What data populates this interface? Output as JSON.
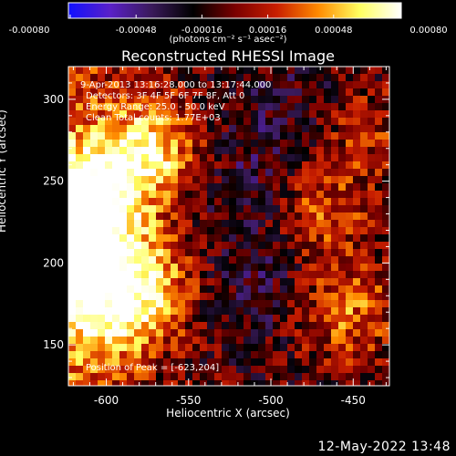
{
  "colorbar": {
    "tick_labels": [
      "-0.00080",
      "-0.00048",
      "-0.00016",
      "0.00016",
      "0.00048",
      "0.00080"
    ],
    "units": "(photons cm⁻² s⁻¹ asec⁻²)",
    "colors": [
      "#1010ff",
      "#5a20c8",
      "#3a1a5a",
      "#000000",
      "#7a0000",
      "#c81e00",
      "#ff8a00",
      "#ffff60",
      "#ffffff"
    ]
  },
  "plot": {
    "title": "Reconstructed RHESSI Image",
    "xlabel": "Heliocentric X (arcsec)",
    "ylabel": "Heliocentric Y (arcsec)",
    "x_ticks": [
      "-600",
      "-550",
      "-500",
      "-450"
    ],
    "y_ticks": [
      "300",
      "250",
      "200",
      "150"
    ],
    "annotation_lines": [
      "9-Apr-2013 13:16:28.000 to 13:17:44.000",
      "Detectors: 3F 4F 5F 6F 7F 8F, Att 0",
      "Energy Range: 25.0 - 50.0 keV",
      "Clean     Total counts: 1.77E+03"
    ],
    "peak_label": "Position of Peak = [-623,204]"
  },
  "footer": {
    "date": "12-May-2022 13:48"
  },
  "chart_data": {
    "type": "heatmap",
    "title": "Reconstructed RHESSI Image",
    "xlabel": "Heliocentric X (arcsec)",
    "ylabel": "Heliocentric Y (arcsec)",
    "xlim": [
      -623,
      -428
    ],
    "ylim": [
      125,
      320
    ],
    "zlim": [
      -0.0008,
      0.0008
    ],
    "peak": [
      -623,
      204
    ],
    "hot_regions": [
      {
        "x": -610,
        "y": 240,
        "level": 0.00075
      },
      {
        "x": -575,
        "y": 268,
        "level": 0.0007
      },
      {
        "x": -620,
        "y": 205,
        "level": 0.0008
      },
      {
        "x": -580,
        "y": 188,
        "level": 0.00065
      },
      {
        "x": -600,
        "y": 160,
        "level": 0.0004
      },
      {
        "x": -455,
        "y": 170,
        "level": 0.00045
      },
      {
        "x": -470,
        "y": 230,
        "level": 0.0004
      },
      {
        "x": -445,
        "y": 280,
        "level": 0.0003
      }
    ],
    "cold_regions": [
      {
        "x": -520,
        "y": 250,
        "level": -0.00016
      },
      {
        "x": -500,
        "y": 190,
        "level": -0.0002
      },
      {
        "x": -480,
        "y": 290,
        "level": -0.00016
      }
    ]
  }
}
